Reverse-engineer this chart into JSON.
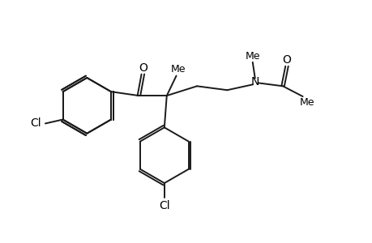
{
  "bg_color": "#ffffff",
  "line_color": "#1a1a1a",
  "line_width": 1.4,
  "font_size": 10,
  "figsize": [
    4.6,
    3.0
  ],
  "dpi": 100,
  "xlim": [
    0,
    46
  ],
  "ylim": [
    0,
    30
  ]
}
